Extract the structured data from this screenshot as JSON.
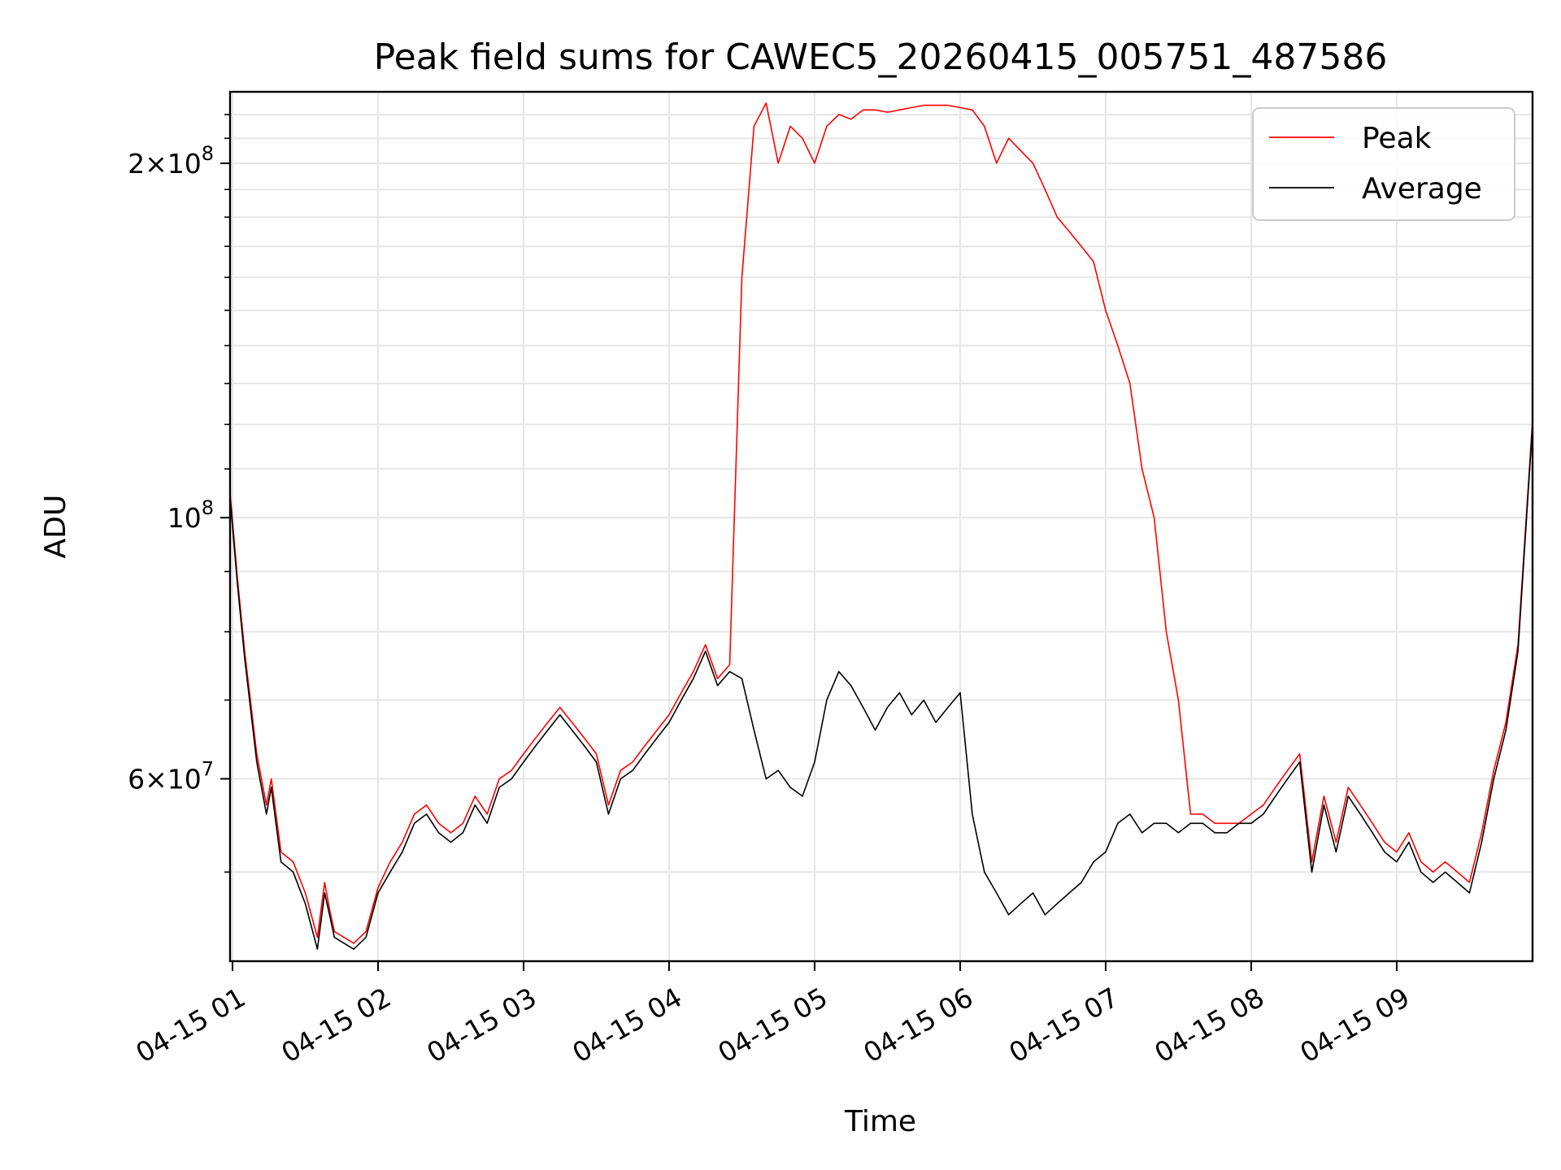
{
  "chart_data": {
    "type": "line",
    "title": "Peak field sums for CAWEC5_20260415_005751_487586",
    "xlabel": "Time",
    "ylabel": "ADU",
    "y_scale": "log",
    "xlim": [
      "04-15 00:59",
      "04-15 09:56"
    ],
    "ylim": [
      42000000,
      230000000
    ],
    "grid": true,
    "legend_position": "top-right",
    "x_ticks": [
      {
        "value": "04-15 01:00",
        "label": "04-15 01"
      },
      {
        "value": "04-15 02:00",
        "label": "04-15 02"
      },
      {
        "value": "04-15 03:00",
        "label": "04-15 03"
      },
      {
        "value": "04-15 04:00",
        "label": "04-15 04"
      },
      {
        "value": "04-15 05:00",
        "label": "04-15 05"
      },
      {
        "value": "04-15 06:00",
        "label": "04-15 06"
      },
      {
        "value": "04-15 07:00",
        "label": "04-15 07"
      },
      {
        "value": "04-15 08:00",
        "label": "04-15 08"
      },
      {
        "value": "04-15 09:00",
        "label": "04-15 09"
      }
    ],
    "y_ticks": [
      {
        "value": 60000000,
        "mantissa": "6",
        "exponent": "7"
      },
      {
        "value": 100000000,
        "mantissa": "",
        "exponent": "8"
      },
      {
        "value": 200000000,
        "mantissa": "2",
        "exponent": "8"
      }
    ],
    "colors": {
      "peak": "#ff0000",
      "average": "#000000"
    },
    "series": [
      {
        "name": "Average",
        "color": "#000000",
        "x": [
          "04-15 00:59",
          "04-15 01:02",
          "04-15 01:05",
          "04-15 01:10",
          "04-15 01:14",
          "04-15 01:16",
          "04-15 01:20",
          "04-15 01:25",
          "04-15 01:30",
          "04-15 01:35",
          "04-15 01:38",
          "04-15 01:40",
          "04-15 01:42",
          "04-15 01:46",
          "04-15 01:50",
          "04-15 01:55",
          "04-15 02:00",
          "04-15 02:05",
          "04-15 02:10",
          "04-15 02:15",
          "04-15 02:20",
          "04-15 02:25",
          "04-15 02:30",
          "04-15 02:35",
          "04-15 02:40",
          "04-15 02:45",
          "04-15 02:50",
          "04-15 02:55",
          "04-15 03:00",
          "04-15 03:05",
          "04-15 03:10",
          "04-15 03:15",
          "04-15 03:20",
          "04-15 03:25",
          "04-15 03:30",
          "04-15 03:35",
          "04-15 03:40",
          "04-15 03:45",
          "04-15 03:50",
          "04-15 03:55",
          "04-15 04:00",
          "04-15 04:05",
          "04-15 04:10",
          "04-15 04:15",
          "04-15 04:20",
          "04-15 04:25",
          "04-15 04:30",
          "04-15 04:35",
          "04-15 04:40",
          "04-15 04:45",
          "04-15 04:50",
          "04-15 04:55",
          "04-15 05:00",
          "04-15 05:05",
          "04-15 05:10",
          "04-15 05:15",
          "04-15 05:20",
          "04-15 05:25",
          "04-15 05:30",
          "04-15 05:35",
          "04-15 05:40",
          "04-15 05:45",
          "04-15 05:50",
          "04-15 05:55",
          "04-15 06:00",
          "04-15 06:05",
          "04-15 06:10",
          "04-15 06:15",
          "04-15 06:20",
          "04-15 06:25",
          "04-15 06:30",
          "04-15 06:35",
          "04-15 06:40",
          "04-15 06:45",
          "04-15 06:50",
          "04-15 06:55",
          "04-15 07:00",
          "04-15 07:05",
          "04-15 07:10",
          "04-15 07:15",
          "04-15 07:20",
          "04-15 07:25",
          "04-15 07:30",
          "04-15 07:35",
          "04-15 07:40",
          "04-15 07:45",
          "04-15 07:50",
          "04-15 07:55",
          "04-15 08:00",
          "04-15 08:05",
          "04-15 08:10",
          "04-15 08:15",
          "04-15 08:20",
          "04-15 08:25",
          "04-15 08:30",
          "04-15 08:35",
          "04-15 08:40",
          "04-15 08:45",
          "04-15 08:50",
          "04-15 08:55",
          "04-15 09:00",
          "04-15 09:05",
          "04-15 09:10",
          "04-15 09:15",
          "04-15 09:20",
          "04-15 09:25",
          "04-15 09:30",
          "04-15 09:35",
          "04-15 09:40",
          "04-15 09:45",
          "04-15 09:50",
          "04-15 09:56"
        ],
        "values": [
          104000000,
          88000000,
          76000000,
          62000000,
          56000000,
          59000000,
          51000000,
          50000000,
          47000000,
          43000000,
          48000000,
          46000000,
          44000000,
          43500000,
          43000000,
          44000000,
          48000000,
          50000000,
          52000000,
          55000000,
          56000000,
          54000000,
          53000000,
          54000000,
          57000000,
          55000000,
          59000000,
          60000000,
          62000000,
          64000000,
          66000000,
          68000000,
          66000000,
          64000000,
          62000000,
          56000000,
          60000000,
          61000000,
          63000000,
          65000000,
          67000000,
          70000000,
          73000000,
          77000000,
          72000000,
          74000000,
          73000000,
          66000000,
          60000000,
          61000000,
          59000000,
          58000000,
          62000000,
          70000000,
          74000000,
          72000000,
          69000000,
          66000000,
          69000000,
          71000000,
          68000000,
          70000000,
          67000000,
          69000000,
          71000000,
          56000000,
          50000000,
          48000000,
          46000000,
          47000000,
          48000000,
          46000000,
          47000000,
          48000000,
          49000000,
          51000000,
          52000000,
          55000000,
          56000000,
          54000000,
          55000000,
          55000000,
          54000000,
          55000000,
          55000000,
          54000000,
          54000000,
          55000000,
          55000000,
          56000000,
          58000000,
          60000000,
          62000000,
          50000000,
          57000000,
          52000000,
          58000000,
          56000000,
          54000000,
          52000000,
          51000000,
          53000000,
          50000000,
          49000000,
          50000000,
          49000000,
          48000000,
          53000000,
          60000000,
          66000000,
          77000000,
          120000000
        ]
      },
      {
        "name": "Peak",
        "color": "#ff0000",
        "x": [
          "04-15 00:59",
          "04-15 01:02",
          "04-15 01:05",
          "04-15 01:10",
          "04-15 01:14",
          "04-15 01:16",
          "04-15 01:20",
          "04-15 01:25",
          "04-15 01:30",
          "04-15 01:35",
          "04-15 01:38",
          "04-15 01:40",
          "04-15 01:42",
          "04-15 01:46",
          "04-15 01:50",
          "04-15 01:55",
          "04-15 02:00",
          "04-15 02:05",
          "04-15 02:10",
          "04-15 02:15",
          "04-15 02:20",
          "04-15 02:25",
          "04-15 02:30",
          "04-15 02:35",
          "04-15 02:40",
          "04-15 02:45",
          "04-15 02:50",
          "04-15 02:55",
          "04-15 03:00",
          "04-15 03:05",
          "04-15 03:10",
          "04-15 03:15",
          "04-15 03:20",
          "04-15 03:25",
          "04-15 03:30",
          "04-15 03:35",
          "04-15 03:40",
          "04-15 03:45",
          "04-15 03:50",
          "04-15 03:55",
          "04-15 04:00",
          "04-15 04:05",
          "04-15 04:10",
          "04-15 04:15",
          "04-15 04:20",
          "04-15 04:25",
          "04-15 04:30",
          "04-15 04:35",
          "04-15 04:40",
          "04-15 04:45",
          "04-15 04:50",
          "04-15 04:55",
          "04-15 05:00",
          "04-15 05:05",
          "04-15 05:10",
          "04-15 05:15",
          "04-15 05:20",
          "04-15 05:25",
          "04-15 05:30",
          "04-15 05:35",
          "04-15 05:40",
          "04-15 05:45",
          "04-15 05:50",
          "04-15 05:55",
          "04-15 06:00",
          "04-15 06:05",
          "04-15 06:10",
          "04-15 06:15",
          "04-15 06:20",
          "04-15 06:25",
          "04-15 06:30",
          "04-15 06:35",
          "04-15 06:40",
          "04-15 06:45",
          "04-15 06:50",
          "04-15 06:55",
          "04-15 07:00",
          "04-15 07:05",
          "04-15 07:10",
          "04-15 07:15",
          "04-15 07:20",
          "04-15 07:25",
          "04-15 07:30",
          "04-15 07:35",
          "04-15 07:40",
          "04-15 07:45",
          "04-15 07:50",
          "04-15 07:55",
          "04-15 08:00",
          "04-15 08:05",
          "04-15 08:10",
          "04-15 08:15",
          "04-15 08:20",
          "04-15 08:25",
          "04-15 08:30",
          "04-15 08:35",
          "04-15 08:40",
          "04-15 08:45",
          "04-15 08:50",
          "04-15 08:55",
          "04-15 09:00",
          "04-15 09:05",
          "04-15 09:10",
          "04-15 09:15",
          "04-15 09:20",
          "04-15 09:25",
          "04-15 09:30",
          "04-15 09:35",
          "04-15 09:40",
          "04-15 09:45",
          "04-15 09:50",
          "04-15 09:56"
        ],
        "values": [
          105000000,
          89000000,
          77000000,
          63000000,
          57000000,
          60000000,
          52000000,
          51000000,
          48000000,
          44000000,
          49000000,
          46500000,
          44500000,
          44000000,
          43500000,
          44500000,
          48500000,
          51000000,
          53000000,
          56000000,
          57000000,
          55000000,
          54000000,
          55000000,
          58000000,
          56000000,
          60000000,
          61000000,
          63000000,
          65000000,
          67000000,
          69000000,
          67000000,
          65000000,
          63000000,
          57000000,
          61000000,
          62000000,
          64000000,
          66000000,
          68000000,
          71000000,
          74000000,
          78000000,
          73000000,
          75000000,
          160000000,
          215000000,
          225000000,
          200000000,
          215000000,
          210000000,
          200000000,
          215000000,
          220000000,
          218000000,
          222000000,
          222000000,
          221000000,
          222000000,
          223000000,
          224000000,
          224000000,
          224000000,
          223000000,
          222000000,
          215000000,
          200000000,
          210000000,
          205000000,
          200000000,
          190000000,
          180000000,
          175000000,
          170000000,
          165000000,
          150000000,
          140000000,
          130000000,
          110000000,
          100000000,
          80000000,
          70000000,
          56000000,
          56000000,
          55000000,
          55000000,
          55000000,
          56000000,
          57000000,
          59000000,
          61000000,
          63000000,
          51000000,
          58000000,
          53000000,
          59000000,
          57000000,
          55000000,
          53000000,
          52000000,
          54000000,
          51000000,
          50000000,
          51000000,
          50000000,
          49000000,
          54000000,
          61000000,
          67000000,
          78000000,
          121000000
        ]
      }
    ]
  }
}
